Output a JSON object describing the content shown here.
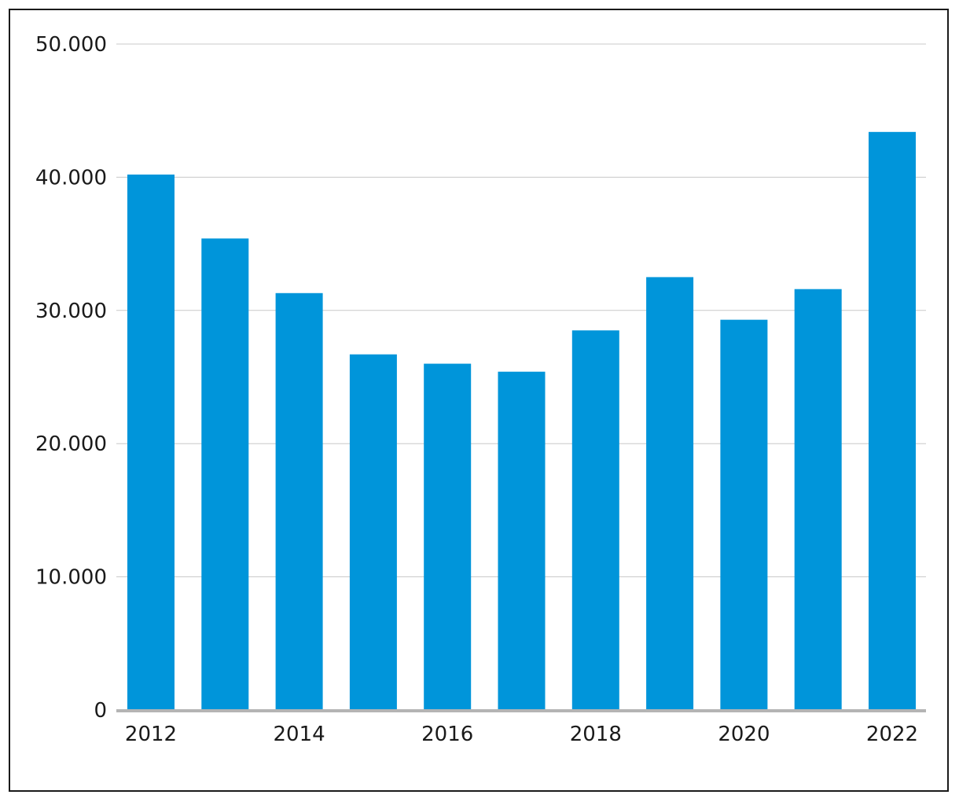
{
  "chart_data": {
    "type": "bar",
    "title": "",
    "xlabel": "",
    "ylabel": "",
    "categories": [
      "2012",
      "2013",
      "2014",
      "2015",
      "2016",
      "2017",
      "2018",
      "2019",
      "2020",
      "2021",
      "2022"
    ],
    "x_tick_labels": [
      "2012",
      "2014",
      "2016",
      "2018",
      "2020",
      "2022"
    ],
    "values": [
      40200,
      35400,
      31300,
      26700,
      26000,
      25400,
      28500,
      32500,
      29300,
      31600,
      43400
    ],
    "ylim": [
      0,
      50000
    ],
    "y_ticks": [
      0,
      10000,
      20000,
      30000,
      40000,
      50000
    ],
    "y_tick_labels": [
      "0",
      "10.000",
      "20.000",
      "30.000",
      "40.000",
      "50.000"
    ],
    "grid": true,
    "legend": "none",
    "colors": {
      "bar": "#0095DA",
      "grid": "#c8c8c8",
      "baseline": "#b4b4b4",
      "text": "#1a1a1a"
    }
  }
}
